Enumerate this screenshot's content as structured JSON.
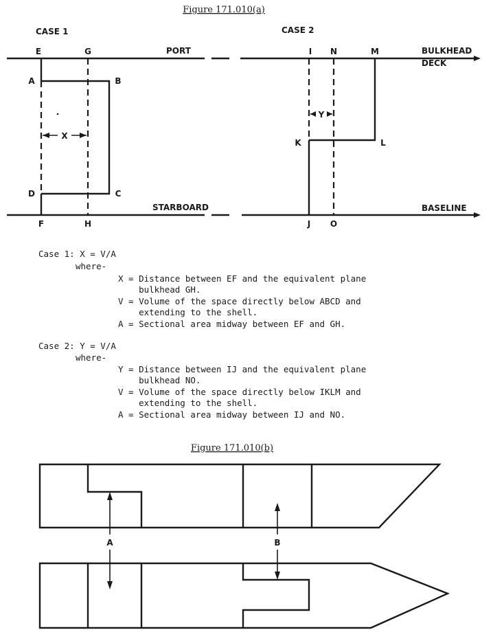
{
  "figure_a": {
    "caption": "Figure 171.010(a)",
    "case1": {
      "title": "CASE 1",
      "labels": {
        "E": "E",
        "G": "G",
        "A": "A",
        "B": "B",
        "C": "C",
        "D": "D",
        "F": "F",
        "H": "H",
        "X": "X"
      },
      "port": "PORT",
      "starboard": "STARBOARD"
    },
    "case2": {
      "title": "CASE 2",
      "labels": {
        "I": "I",
        "N": "N",
        "M": "M",
        "K": "K",
        "L": "L",
        "J": "J",
        "O": "O",
        "Y": "Y"
      },
      "bulkhead": "BULKHEAD",
      "deck": "DECK",
      "baseline": "BASELINE"
    }
  },
  "legend": {
    "case1": {
      "formula": "Case 1: X = V/A",
      "where": "where-",
      "lines": [
        "X = Distance between EF and the equivalent plane",
        "    bulkhead GH.",
        "V = Volume of the space directly below ABCD and",
        "    extending to the shell.",
        "A = Sectional area midway between EF and GH."
      ]
    },
    "case2": {
      "formula": "Case 2: Y = V/A",
      "where": "where-",
      "lines": [
        "Y = Distance between IJ and the equivalent plane",
        "    bulkhead NO.",
        "V = Volume of the space directly below IKLM and",
        "    extending to the shell.",
        "A = Sectional area midway between IJ and NO."
      ]
    }
  },
  "figure_b": {
    "caption": "Figure 171.010(b)",
    "label_a": "A",
    "label_b": "B"
  }
}
